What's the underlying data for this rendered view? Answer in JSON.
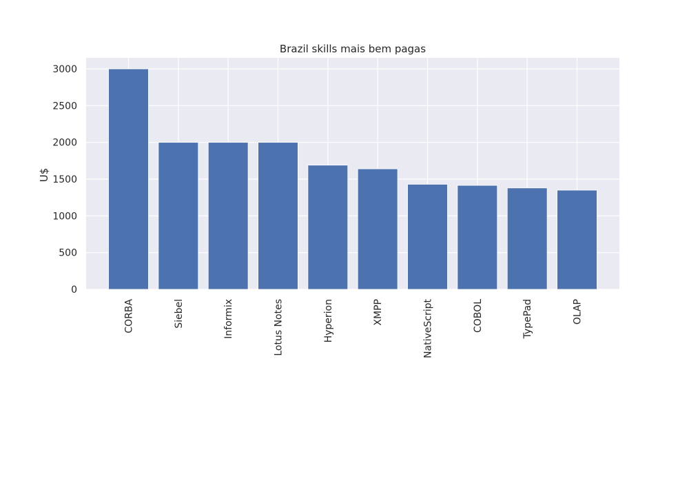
{
  "chart_data": {
    "type": "bar",
    "title": "Brazil skills mais bem pagas",
    "xlabel": "",
    "ylabel": "U$",
    "categories": [
      "CORBA",
      "Siebel",
      "Informix",
      "Lotus Notes",
      "Hyperion",
      "XMPP",
      "NativeScript",
      "COBOL",
      "TypePad",
      "OLAP"
    ],
    "values": [
      3000,
      2000,
      2000,
      2000,
      1690,
      1640,
      1430,
      1415,
      1380,
      1350
    ],
    "ylim": [
      0,
      3150
    ],
    "yticks": [
      0,
      500,
      1000,
      1500,
      2000,
      2500,
      3000
    ],
    "grid": true,
    "colors": {
      "bar": "#4c72b0",
      "plot_bg": "#eaeaf2",
      "grid": "#ffffff",
      "text": "#262626"
    }
  }
}
